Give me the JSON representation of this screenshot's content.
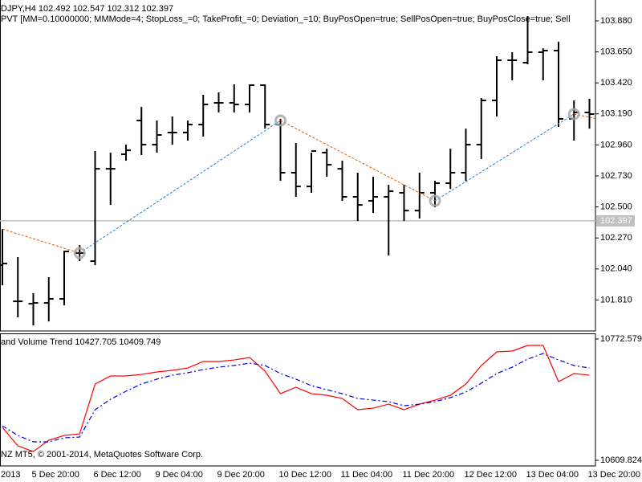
{
  "chart_data": [
    {
      "type": "ohlc",
      "title": "DJPY,H4  102.492 102.547 102.312 102.397",
      "subtitle": "PVT [MM=0.10000000; MMMode=4; StopLoss_=0; TakeProfit_=0; Deviation_=10; BuyPosOpen=true; SellPosOpen=true; BuyPosClose=true; Sell",
      "categories": [
        "2013",
        null,
        "5 Dec 20:00",
        null,
        null,
        null,
        "6 Dec 12:00",
        null,
        null,
        null,
        "9 Dec 04:00",
        null,
        null,
        null,
        "9 Dec 20:00",
        null,
        null,
        null,
        "10 Dec 12:00",
        null,
        null,
        null,
        "11 Dec 04:00",
        null,
        null,
        null,
        "11 Dec 20:00",
        null,
        null,
        null,
        "12 Dec 12:00",
        null,
        null,
        null,
        "13 Dec 04:00",
        null,
        null,
        null,
        "13 Dec 20:00"
      ],
      "open": [
        102.068,
        101.8,
        101.782,
        101.788,
        101.818,
        102.158,
        102.098,
        102.783,
        102.891,
        103.141,
        102.962,
        103.052,
        103.052,
        103.111,
        103.272,
        103.272,
        103.26,
        103.403,
        103.111,
        102.754,
        102.652,
        102.903,
        102.783,
        102.575,
        102.545,
        102.575,
        102.605,
        102.473,
        102.605,
        102.676,
        102.754,
        102.962,
        103.29,
        103.588,
        103.57,
        103.648,
        103.66,
        103.153,
        103.201
      ],
      "high": [
        102.336,
        102.128,
        101.86,
        101.979,
        102.175,
        102.217,
        102.915,
        102.903,
        102.962,
        103.242,
        103.141,
        103.171,
        103.141,
        103.332,
        103.35,
        103.409,
        103.409,
        103.409,
        103.153,
        102.974,
        102.903,
        102.932,
        102.843,
        102.754,
        102.724,
        102.664,
        102.664,
        102.754,
        102.694,
        102.932,
        103.081,
        103.308,
        103.618,
        103.648,
        103.916,
        103.677,
        103.725,
        103.29,
        103.302
      ],
      "low": [
        101.919,
        101.681,
        101.621,
        101.651,
        101.77,
        102.098,
        102.068,
        102.515,
        102.843,
        102.885,
        102.903,
        102.962,
        102.992,
        103.022,
        103.201,
        103.201,
        103.201,
        103.081,
        102.694,
        102.575,
        102.605,
        102.724,
        102.545,
        102.396,
        102.456,
        102.14,
        102.396,
        102.414,
        102.497,
        102.634,
        102.694,
        102.855,
        103.171,
        103.439,
        103.558,
        103.439,
        103.093,
        102.992,
        103.081
      ],
      "close": [
        102.08,
        101.8,
        101.788,
        101.818,
        102.17,
        102.158,
        102.783,
        102.783,
        102.92,
        102.962,
        103.034,
        103.052,
        103.111,
        103.26,
        103.272,
        103.26,
        103.403,
        103.111,
        102.754,
        102.652,
        102.915,
        102.813,
        102.575,
        102.515,
        102.575,
        102.617,
        102.473,
        102.605,
        102.676,
        102.754,
        102.962,
        103.29,
        103.588,
        103.588,
        103.648,
        103.66,
        103.153,
        103.201,
        103.189
      ],
      "color": "#000000",
      "ylim": [
        101.58,
        104.035
      ],
      "yticks": [
        {
          "value": 103.88,
          "label": "103.880"
        },
        {
          "value": 103.65,
          "label": "103.650"
        },
        {
          "value": 103.42,
          "label": "103.420"
        },
        {
          "value": 103.19,
          "label": "103.190"
        },
        {
          "value": 102.96,
          "label": "102.960"
        },
        {
          "value": 102.73,
          "label": "102.730"
        },
        {
          "value": 102.5,
          "label": "102.500"
        },
        {
          "value": 102.27,
          "label": "102.270"
        },
        {
          "value": 102.04,
          "label": "102.040"
        },
        {
          "value": 101.81,
          "label": "101.810"
        }
      ],
      "current_price": 102.397,
      "current_price_color": "#c0c0c0",
      "trades": [
        {
          "color": "#e05a00",
          "x": [
            0,
            5
          ],
          "y": [
            102.336,
            102.158
          ]
        },
        {
          "color": "#1e7fd0",
          "x": [
            5,
            18
          ],
          "y": [
            102.158,
            103.141
          ]
        },
        {
          "color": "#e05a00",
          "x": [
            18,
            28
          ],
          "y": [
            103.141,
            102.545
          ]
        },
        {
          "color": "#1e7fd0",
          "x": [
            28,
            37
          ],
          "y": [
            102.545,
            103.189
          ]
        },
        {
          "color": "#e05a00",
          "x": [
            37,
            38.5
          ],
          "y": [
            103.189,
            103.153
          ]
        }
      ],
      "deals": {
        "color": "#a8a8a8",
        "x": [
          5,
          18,
          28,
          37
        ],
        "y": [
          102.158,
          103.141,
          102.545,
          103.189
        ]
      }
    },
    {
      "type": "line",
      "title": "and Volume Trend 10427.705 10409.749",
      "annotation": "NZ MT5, © 2001-2014, MetaQuotes Software Corp.",
      "series": [
        {
          "color": "#ff0000",
          "style": "solid",
          "values": [
            10654.0,
            10629.2,
            10621.6,
            10636.7,
            10643.2,
            10645.3,
            10712.2,
            10723.0,
            10723.0,
            10725.1,
            10728.4,
            10730.5,
            10733.7,
            10742.4,
            10742.4,
            10744.5,
            10747.8,
            10729.4,
            10699.2,
            10707.9,
            10699.2,
            10697.1,
            10692.8,
            10677.7,
            10679.8,
            10685.2,
            10677.7,
            10685.2,
            10690.6,
            10697.1,
            10712.2,
            10737.0,
            10755.3,
            10756.4,
            10763.9,
            10763.9,
            10715.4,
            10726.2,
            10724.0
          ]
        },
        {
          "color": "#0000dd",
          "style": "dashed",
          "values": [
            10656.1,
            10643.2,
            10634.6,
            10634.6,
            10640.0,
            10641.0,
            10677.7,
            10691.7,
            10702.5,
            10712.2,
            10718.7,
            10724.0,
            10727.3,
            10731.6,
            10734.8,
            10737.0,
            10740.2,
            10737.0,
            10726.2,
            10718.7,
            10710.0,
            10704.6,
            10699.2,
            10692.8,
            10690.6,
            10688.5,
            10683.1,
            10685.2,
            10688.5,
            10693.9,
            10701.4,
            10713.3,
            10726.2,
            10734.8,
            10745.6,
            10753.1,
            10744.5,
            10737.0,
            10733.7
          ]
        }
      ],
      "ylim": [
        10602.3,
        10780.1
      ],
      "yticks": [
        10772.579,
        10609.824
      ]
    }
  ]
}
